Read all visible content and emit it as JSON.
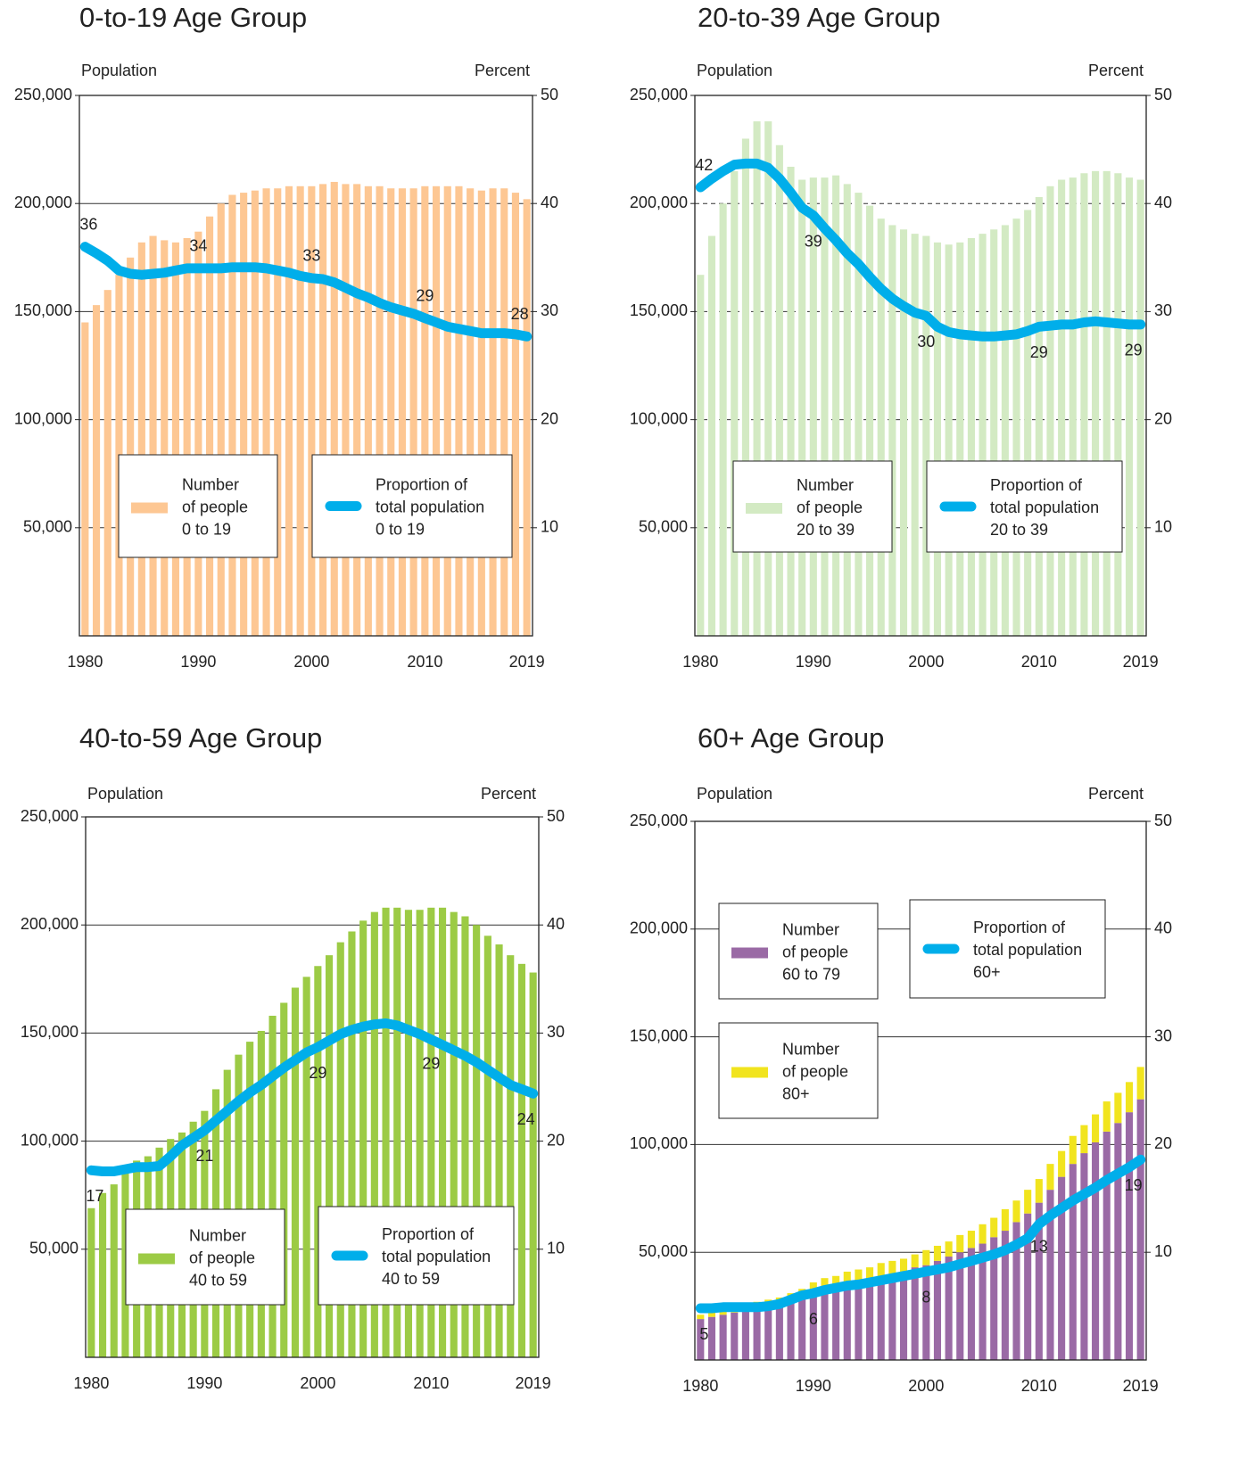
{
  "chart_data": [
    {
      "type": "bar_line",
      "title": "0-to-19 Age Group",
      "y_label": "Population",
      "y2_label": "Percent",
      "x": [
        1980,
        1981,
        1982,
        1983,
        1984,
        1985,
        1986,
        1987,
        1988,
        1989,
        1990,
        1991,
        1992,
        1993,
        1994,
        1995,
        1996,
        1997,
        1998,
        1999,
        2000,
        2001,
        2002,
        2003,
        2004,
        2005,
        2006,
        2007,
        2008,
        2009,
        2010,
        2011,
        2012,
        2013,
        2014,
        2015,
        2016,
        2017,
        2018,
        2019
      ],
      "xlim": [
        1979.5,
        2019.5
      ],
      "xticks": [
        1980,
        1990,
        2000,
        2010,
        2019
      ],
      "ylim": [
        0,
        250000
      ],
      "yticks": [
        {
          "value": 50000,
          "label": "50,000"
        },
        {
          "value": 100000,
          "label": "100,000"
        },
        {
          "value": 150000,
          "label": "150,000"
        },
        {
          "value": 200000,
          "label": "200,000"
        },
        {
          "value": 250000,
          "label": "250,000"
        }
      ],
      "y2lim": [
        0,
        50
      ],
      "y2ticks": [
        10,
        20,
        30,
        40,
        50
      ],
      "grid": "solid",
      "series": [
        {
          "name": "Number\nof people\n0 to 19",
          "kind": "bar",
          "color": "#fdc793",
          "values": [
            145000,
            153000,
            160000,
            167000,
            175000,
            182000,
            185000,
            183000,
            182000,
            184000,
            187000,
            194000,
            200000,
            204000,
            205000,
            206000,
            207000,
            207000,
            208000,
            208000,
            208000,
            209000,
            210000,
            209000,
            209000,
            208000,
            208000,
            207000,
            207000,
            207000,
            208000,
            208000,
            208000,
            208000,
            207000,
            206000,
            207000,
            207000,
            205000,
            202000
          ]
        },
        {
          "name": "Proportion of\ntotal population\n0 to 19",
          "kind": "line",
          "axis": "y2",
          "color": "#00aeea",
          "values": [
            36,
            35.4,
            34.7,
            33.8,
            33.5,
            33.4,
            33.5,
            33.6,
            33.8,
            34,
            34,
            34,
            34,
            34.1,
            34.1,
            34.1,
            34,
            33.8,
            33.6,
            33.3,
            33.1,
            33,
            32.7,
            32.2,
            31.7,
            31.3,
            30.8,
            30.4,
            30.1,
            29.8,
            29.4,
            29,
            28.6,
            28.4,
            28.2,
            28,
            28,
            28,
            27.9,
            27.7
          ],
          "value_labels": [
            "36",
            null,
            null,
            null,
            null,
            null,
            null,
            null,
            null,
            null,
            "34",
            null,
            null,
            null,
            null,
            null,
            null,
            null,
            null,
            null,
            "33",
            null,
            null,
            null,
            null,
            null,
            null,
            null,
            null,
            null,
            "29",
            null,
            null,
            null,
            null,
            null,
            null,
            null,
            null,
            "28"
          ]
        }
      ]
    },
    {
      "type": "bar_line",
      "title": "20-to-39 Age Group",
      "y_label": "Population",
      "y2_label": "Percent",
      "x": [
        1980,
        1981,
        1982,
        1983,
        1984,
        1985,
        1986,
        1987,
        1988,
        1989,
        1990,
        1991,
        1992,
        1993,
        1994,
        1995,
        1996,
        1997,
        1998,
        1999,
        2000,
        2001,
        2002,
        2003,
        2004,
        2005,
        2006,
        2007,
        2008,
        2009,
        2010,
        2011,
        2012,
        2013,
        2014,
        2015,
        2016,
        2017,
        2018,
        2019
      ],
      "xlim": [
        1979.5,
        2019.5
      ],
      "xticks": [
        1980,
        1990,
        2000,
        2010,
        2019
      ],
      "ylim": [
        0,
        250000
      ],
      "yticks": [
        {
          "value": 50000,
          "label": "50,000"
        },
        {
          "value": 100000,
          "label": "100,000"
        },
        {
          "value": 150000,
          "label": "150,000"
        },
        {
          "value": 200000,
          "label": "200,000"
        },
        {
          "value": 250000,
          "label": "250,000"
        }
      ],
      "y2lim": [
        0,
        50
      ],
      "y2ticks": [
        10,
        20,
        30,
        40,
        50
      ],
      "grid": "dashed",
      "series": [
        {
          "name": "Number\nof people\n20 to 39",
          "kind": "bar",
          "color": "#d3eac3",
          "values": [
            167000,
            185000,
            200000,
            215000,
            230000,
            238000,
            238000,
            227000,
            217000,
            211000,
            212000,
            212000,
            213000,
            209000,
            205000,
            199000,
            193000,
            190000,
            188000,
            186000,
            185000,
            182000,
            181000,
            182000,
            184000,
            186000,
            188000,
            190000,
            193000,
            197000,
            203000,
            208000,
            211000,
            212000,
            214000,
            215000,
            215000,
            214000,
            212000,
            211000
          ]
        },
        {
          "name": "Proportion of\ntotal population\n20 to 39",
          "kind": "line",
          "axis": "y2",
          "color": "#00aeea",
          "values": [
            41.5,
            42.3,
            43,
            43.6,
            43.7,
            43.7,
            43.3,
            42.3,
            41,
            39.6,
            38.9,
            37.7,
            36.6,
            35.4,
            34.4,
            33.2,
            32.1,
            31.2,
            30.5,
            29.9,
            29.6,
            28.6,
            28.1,
            27.9,
            27.8,
            27.7,
            27.7,
            27.8,
            27.9,
            28.2,
            28.6,
            28.7,
            28.8,
            28.8,
            29,
            29.1,
            29,
            28.9,
            28.8,
            28.8
          ],
          "value_labels": [
            "42",
            null,
            null,
            null,
            null,
            null,
            null,
            null,
            null,
            null,
            "39",
            null,
            null,
            null,
            null,
            null,
            null,
            null,
            null,
            null,
            "30",
            null,
            null,
            null,
            null,
            null,
            null,
            null,
            null,
            null,
            "29",
            null,
            null,
            null,
            null,
            null,
            null,
            null,
            null,
            "29"
          ]
        }
      ]
    },
    {
      "type": "bar_line",
      "title": "40-to-59 Age Group",
      "y_label": "Population",
      "y2_label": "Percent",
      "x": [
        1980,
        1981,
        1982,
        1983,
        1984,
        1985,
        1986,
        1987,
        1988,
        1989,
        1990,
        1991,
        1992,
        1993,
        1994,
        1995,
        1996,
        1997,
        1998,
        1999,
        2000,
        2001,
        2002,
        2003,
        2004,
        2005,
        2006,
        2007,
        2008,
        2009,
        2010,
        2011,
        2012,
        2013,
        2014,
        2015,
        2016,
        2017,
        2018,
        2019
      ],
      "xlim": [
        1979.5,
        2019.5
      ],
      "xticks": [
        1980,
        1990,
        2000,
        2010,
        2019
      ],
      "ylim": [
        0,
        250000
      ],
      "yticks": [
        {
          "value": 50000,
          "label": "50,000"
        },
        {
          "value": 100000,
          "label": "100,000"
        },
        {
          "value": 150000,
          "label": "150,000"
        },
        {
          "value": 200000,
          "label": "200,000"
        },
        {
          "value": 250000,
          "label": "250,000"
        }
      ],
      "y2lim": [
        0,
        50
      ],
      "y2ticks": [
        10,
        20,
        30,
        40,
        50
      ],
      "grid": "solid",
      "series": [
        {
          "name": "Number\nof people\n40 to 59",
          "kind": "bar",
          "color": "#9ccb45",
          "values": [
            69000,
            76000,
            80000,
            87000,
            91000,
            93000,
            97000,
            101000,
            104000,
            109000,
            114000,
            124000,
            133000,
            140000,
            146000,
            151000,
            158000,
            164000,
            171000,
            176000,
            181000,
            186000,
            192000,
            197000,
            202000,
            206000,
            208000,
            208000,
            207000,
            207000,
            208000,
            208000,
            206000,
            204000,
            200000,
            195000,
            191000,
            186000,
            182000,
            178000
          ]
        },
        {
          "name": "Proportion of\ntotal population\n40 to 59",
          "kind": "line",
          "axis": "y2",
          "color": "#00aeea",
          "values": [
            17.3,
            17.2,
            17.2,
            17.4,
            17.6,
            17.6,
            17.7,
            18.6,
            19.6,
            20.3,
            21,
            21.9,
            22.8,
            23.7,
            24.5,
            25.2,
            26,
            26.8,
            27.5,
            28.2,
            28.7,
            29.3,
            29.9,
            30.3,
            30.6,
            30.8,
            30.9,
            30.7,
            30.3,
            29.9,
            29.4,
            28.9,
            28.4,
            27.9,
            27.3,
            26.6,
            25.9,
            25.2,
            24.8,
            24.4
          ],
          "value_labels": [
            "17",
            null,
            null,
            null,
            null,
            null,
            null,
            null,
            null,
            null,
            "21",
            null,
            null,
            null,
            null,
            null,
            null,
            null,
            null,
            null,
            "29",
            null,
            null,
            null,
            null,
            null,
            null,
            null,
            null,
            null,
            "29",
            null,
            null,
            null,
            null,
            null,
            null,
            null,
            null,
            "24"
          ]
        }
      ]
    },
    {
      "type": "bar_line",
      "title": "60+ Age Group",
      "y_label": "Population",
      "y2_label": "Percent",
      "x": [
        1980,
        1981,
        1982,
        1983,
        1984,
        1985,
        1986,
        1987,
        1988,
        1989,
        1990,
        1991,
        1992,
        1993,
        1994,
        1995,
        1996,
        1997,
        1998,
        1999,
        2000,
        2001,
        2002,
        2003,
        2004,
        2005,
        2006,
        2007,
        2008,
        2009,
        2010,
        2011,
        2012,
        2013,
        2014,
        2015,
        2016,
        2017,
        2018,
        2019
      ],
      "xlim": [
        1979.5,
        2019.5
      ],
      "xticks": [
        1980,
        1990,
        2000,
        2010,
        2019
      ],
      "ylim": [
        0,
        250000
      ],
      "yticks": [
        {
          "value": 50000,
          "label": "50,000"
        },
        {
          "value": 100000,
          "label": "100,000"
        },
        {
          "value": 150000,
          "label": "150,000"
        },
        {
          "value": 200000,
          "label": "200,000"
        },
        {
          "value": 250000,
          "label": "250,000"
        }
      ],
      "y2lim": [
        0,
        50
      ],
      "y2ticks": [
        10,
        20,
        30,
        40,
        50
      ],
      "grid": "solid",
      "series": [
        {
          "name": "Number\nof people\n60 to 79",
          "kind": "bar",
          "color": "#9a6aa5",
          "values": [
            19000,
            20000,
            21000,
            22000,
            23000,
            24000,
            25000,
            26000,
            28000,
            30000,
            32000,
            34000,
            35000,
            36000,
            37000,
            38000,
            39000,
            40000,
            41000,
            43000,
            44000,
            46000,
            48000,
            50000,
            52000,
            54000,
            57000,
            60000,
            64000,
            68000,
            73000,
            79000,
            85000,
            91000,
            96000,
            101000,
            106000,
            110000,
            115000,
            121000
          ]
        },
        {
          "name": "Number\nof people\n80+",
          "kind": "bar",
          "stack": true,
          "color": "#f1e41e",
          "values": [
            2000,
            2000,
            2000,
            2000,
            2000,
            3000,
            3000,
            3000,
            3000,
            3000,
            4000,
            4000,
            4000,
            5000,
            5000,
            5000,
            6000,
            6000,
            6000,
            6000,
            7000,
            7000,
            7000,
            8000,
            8000,
            9000,
            9000,
            10000,
            10000,
            11000,
            11000,
            12000,
            12000,
            13000,
            13000,
            13000,
            14000,
            14000,
            14000,
            15000
          ]
        },
        {
          "name": "Proportion of\ntotal population\n60+",
          "kind": "line",
          "axis": "y2",
          "color": "#00aeea",
          "values": [
            4.8,
            4.8,
            4.9,
            4.9,
            4.9,
            4.9,
            5,
            5.2,
            5.6,
            6,
            6.2,
            6.5,
            6.7,
            6.9,
            7,
            7.2,
            7.4,
            7.6,
            7.8,
            8,
            8.2,
            8.4,
            8.6,
            8.9,
            9.2,
            9.5,
            9.8,
            10.2,
            10.7,
            11.3,
            12.6,
            13.4,
            14.1,
            14.8,
            15.4,
            16,
            16.7,
            17.3,
            17.9,
            18.6
          ],
          "value_labels": [
            "5",
            null,
            null,
            null,
            null,
            null,
            null,
            null,
            null,
            null,
            "6",
            null,
            null,
            null,
            null,
            null,
            null,
            null,
            null,
            null,
            "8",
            null,
            null,
            null,
            null,
            null,
            null,
            null,
            null,
            null,
            "13",
            null,
            null,
            null,
            null,
            null,
            null,
            null,
            null,
            "19"
          ]
        }
      ]
    }
  ]
}
